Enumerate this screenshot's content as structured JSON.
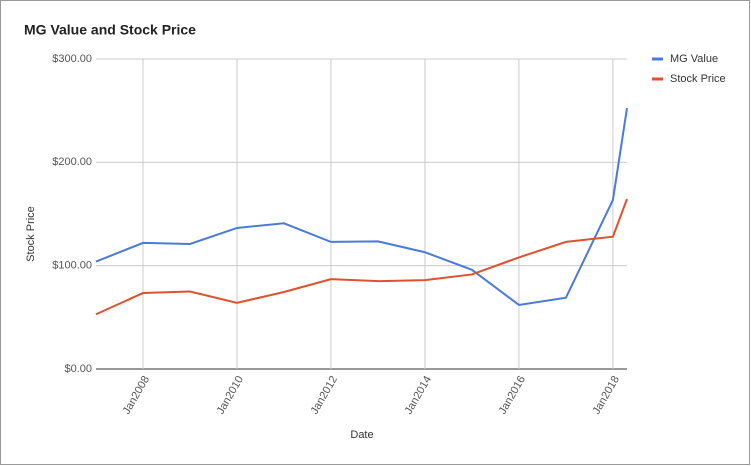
{
  "chart_data": {
    "type": "line",
    "title": "MG Value and Stock Price",
    "x_label": "Date",
    "y_label": "Stock Price",
    "x": [
      2007,
      2008,
      2009,
      2010,
      2011,
      2012,
      2013,
      2014,
      2015,
      2016,
      2017,
      2018,
      2018.3
    ],
    "series": [
      {
        "name": "MG Value",
        "color": "#4a7bd8",
        "values": [
          104,
          122,
          121,
          136.5,
          141,
          123,
          123.5,
          113,
          96,
          62,
          69,
          163.5,
          252.5
        ]
      },
      {
        "name": "Stock Price",
        "color": "#e0522d",
        "values": [
          53,
          73.5,
          75,
          64,
          74.5,
          87,
          85,
          86,
          91.5,
          108,
          123,
          128,
          164.5
        ]
      }
    ],
    "xlim": [
      2007,
      2018.3
    ],
    "xticks": [
      {
        "value": 2008,
        "label": "Jan2008"
      },
      {
        "value": 2010,
        "label": "Jan2010"
      },
      {
        "value": 2012,
        "label": "Jan2012"
      },
      {
        "value": 2014,
        "label": "Jan2014"
      },
      {
        "value": 2016,
        "label": "Jan2016"
      },
      {
        "value": 2018,
        "label": "Jan2018"
      }
    ],
    "ylim": [
      0,
      300
    ],
    "yticks": [
      {
        "value": 0,
        "label": "$0.00"
      },
      {
        "value": 100,
        "label": "$100.00"
      },
      {
        "value": 200,
        "label": "$200.00"
      },
      {
        "value": 300,
        "label": "$300.00"
      }
    ],
    "grid": true,
    "legend": "right"
  }
}
